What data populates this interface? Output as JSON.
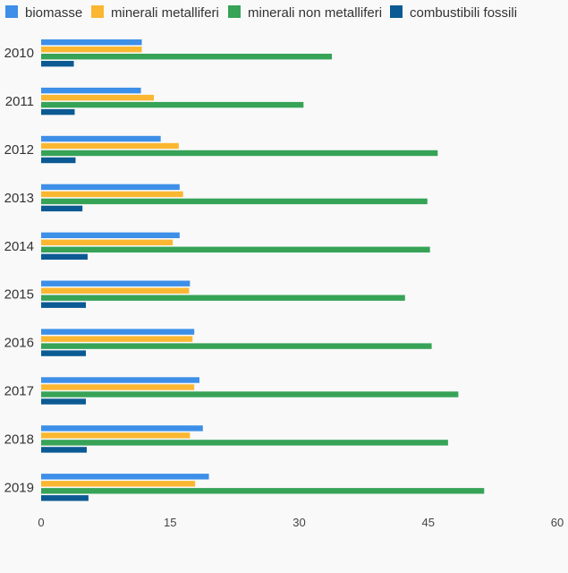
{
  "chart_data": {
    "type": "bar",
    "orientation": "horizontal",
    "categories": [
      "2010",
      "2011",
      "2012",
      "2013",
      "2014",
      "2015",
      "2016",
      "2017",
      "2018",
      "2019"
    ],
    "series": [
      {
        "name": "biomasse",
        "color": "#3d8fe8",
        "values": [
          11.7,
          11.6,
          13.9,
          16.1,
          16.1,
          17.3,
          17.8,
          18.4,
          18.8,
          19.5
        ]
      },
      {
        "name": "minerali metalliferi",
        "color": "#fbb731",
        "values": [
          11.7,
          13.1,
          16.0,
          16.5,
          15.3,
          17.2,
          17.6,
          17.8,
          17.3,
          17.9
        ]
      },
      {
        "name": "minerali non metalliferi",
        "color": "#36a357",
        "values": [
          33.8,
          30.5,
          46.1,
          44.9,
          45.2,
          42.3,
          45.4,
          48.5,
          47.3,
          51.5
        ]
      },
      {
        "name": "combustibili fossili",
        "color": "#0b5a93",
        "values": [
          3.8,
          3.9,
          4.0,
          4.8,
          5.4,
          5.2,
          5.2,
          5.2,
          5.3,
          5.5
        ]
      }
    ],
    "xlim": [
      0,
      60
    ],
    "xticks": [
      "0",
      "15",
      "30",
      "45",
      "60"
    ],
    "title": "",
    "xlabel": "",
    "ylabel": "",
    "legend_position": "top-left"
  }
}
